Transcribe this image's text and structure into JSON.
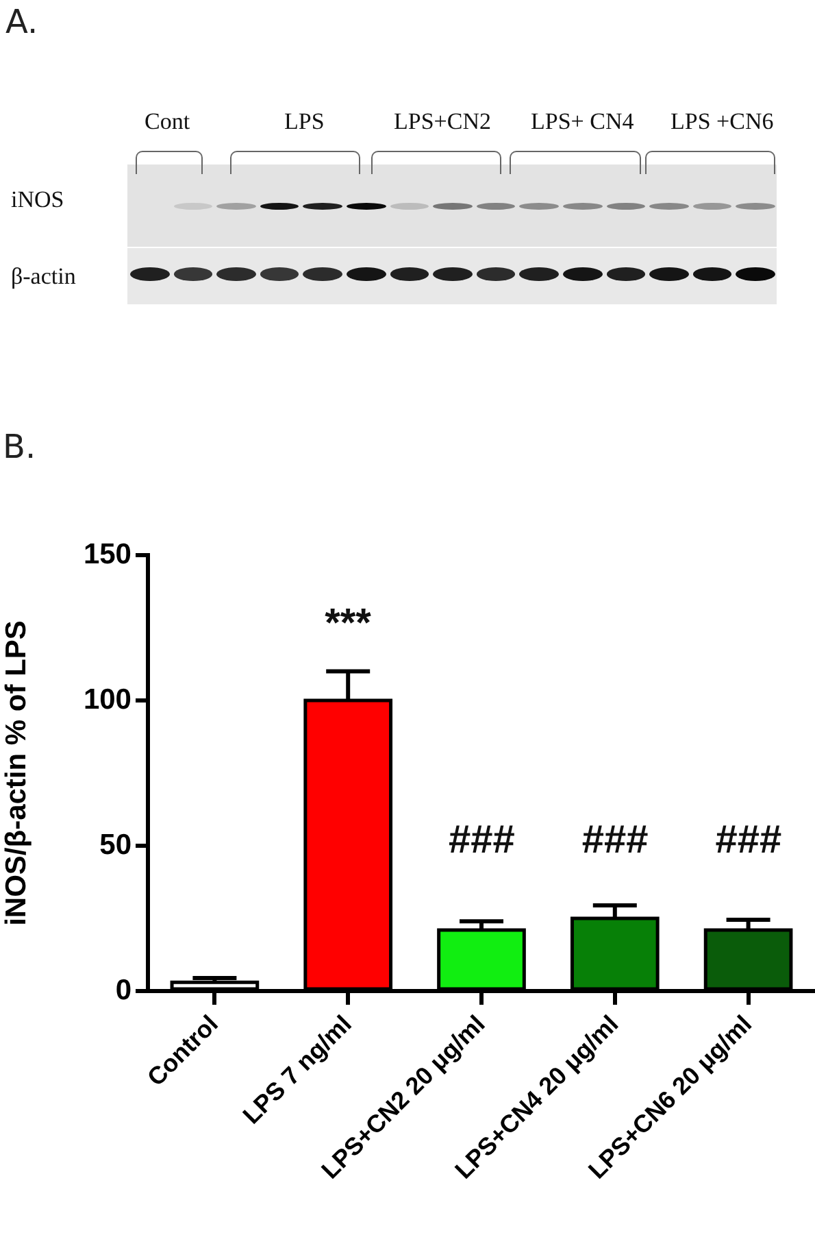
{
  "chart_data": {
    "type": "bar",
    "ylabel": "iNOS/β-actin % of LPS",
    "categories": [
      "Control",
      "LPS 7 ng/ml",
      "LPS+CN2 20 μg/ml",
      "LPS+CN4 20 μg/ml",
      "LPS+CN6 20 μg/ml"
    ],
    "values": [
      3,
      100,
      21,
      25,
      21
    ],
    "errors": [
      [
        3,
        4.5
      ],
      [
        100,
        110
      ],
      [
        21,
        24
      ],
      [
        25,
        29.5
      ],
      [
        21,
        24.5
      ]
    ],
    "colors": [
      "#ffffff",
      "#ff0000",
      "#11ee11",
      "#078007",
      "#0a5c0a"
    ],
    "ylim": [
      0,
      150
    ],
    "yticks": [
      0,
      50,
      100,
      150
    ],
    "annotations": [
      "A.",
      "Cont",
      "LPS",
      "LPS+CN2",
      "LPS+ CN4",
      "LPS +CN6",
      "iNOS",
      "β-actin",
      "B.",
      "***",
      "###",
      "###",
      "###"
    ]
  }
}
